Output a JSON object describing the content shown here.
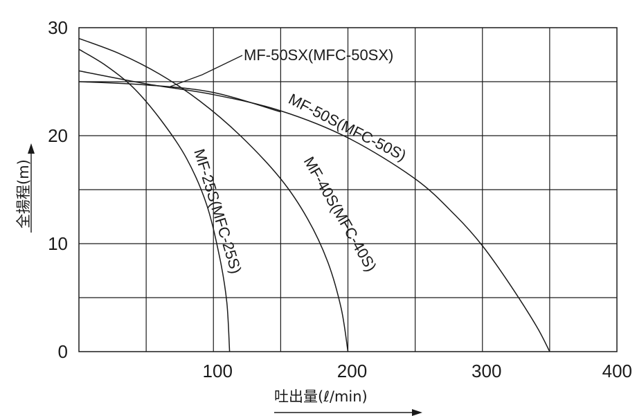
{
  "chart_data": {
    "type": "line",
    "xlabel": "吐出量(ℓ/min)",
    "ylabel": "全揚程(m)",
    "xlim": [
      0,
      400
    ],
    "ylim": [
      0,
      30
    ],
    "grid": true,
    "y_ticks": [
      {
        "value": 0,
        "label": "0"
      },
      {
        "value": 10,
        "label": "10"
      },
      {
        "value": 20,
        "label": "20"
      },
      {
        "value": 30,
        "label": "30"
      }
    ],
    "x_ticks": [
      {
        "value": 100,
        "label": "100"
      },
      {
        "value": 200,
        "label": "200"
      },
      {
        "value": 300,
        "label": "300"
      },
      {
        "value": 400,
        "label": "400"
      }
    ],
    "series": [
      {
        "name": "MF-25S(MFC-25S)",
        "points": [
          [
            0,
            28
          ],
          [
            20,
            26.5
          ],
          [
            40,
            24.5
          ],
          [
            60,
            21.6
          ],
          [
            80,
            17.9
          ],
          [
            95,
            13.6
          ],
          [
            105,
            8.5
          ],
          [
            110,
            4.5
          ],
          [
            112,
            0
          ]
        ]
      },
      {
        "name": "MF-40S(MFC-40S)",
        "points": [
          [
            0,
            29
          ],
          [
            30,
            27.6
          ],
          [
            60,
            25.7
          ],
          [
            90,
            23.2
          ],
          [
            120,
            20
          ],
          [
            150,
            16
          ],
          [
            170,
            12.3
          ],
          [
            185,
            8.3
          ],
          [
            195,
            4
          ],
          [
            200,
            0
          ]
        ]
      },
      {
        "name": "MF-50S(MFC-50S)",
        "points": [
          [
            0,
            26
          ],
          [
            50,
            24.8
          ],
          [
            100,
            23.8
          ],
          [
            150,
            22.3
          ],
          [
            200,
            19.8
          ],
          [
            250,
            16
          ],
          [
            280,
            12.6
          ],
          [
            300,
            9.8
          ],
          [
            320,
            6.3
          ],
          [
            340,
            2.4
          ],
          [
            350,
            0
          ]
        ]
      },
      {
        "name": "MF-50SX(MFC-50SX)",
        "points": [
          [
            0,
            25
          ],
          [
            50,
            24.7
          ],
          [
            100,
            24
          ],
          [
            150,
            22.2
          ]
        ]
      }
    ]
  }
}
